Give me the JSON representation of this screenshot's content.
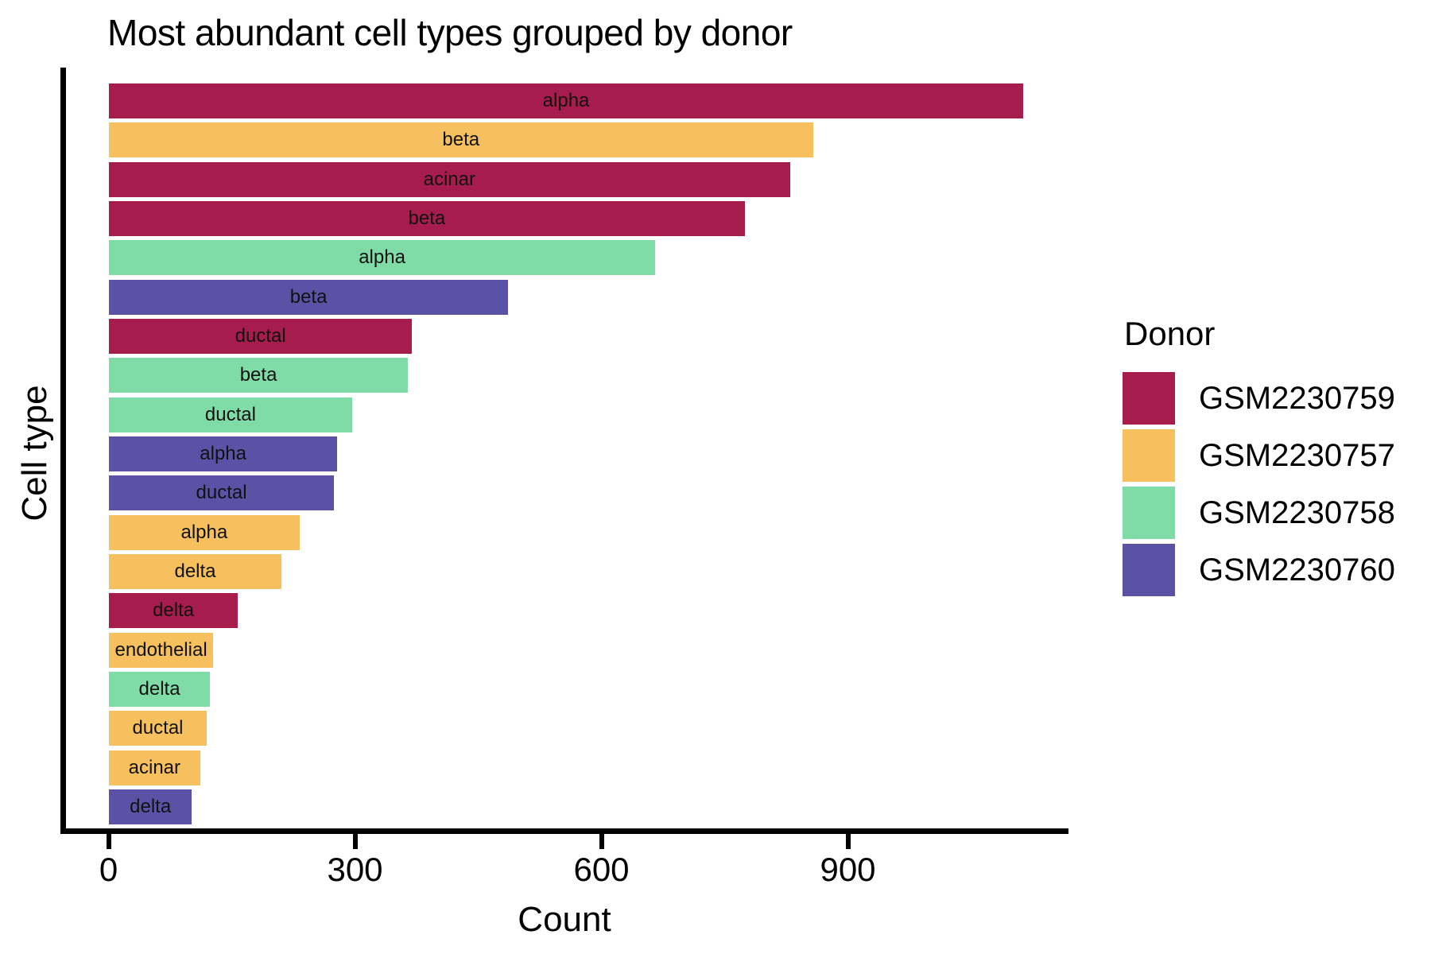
{
  "title": "Most abundant cell types grouped by donor",
  "xlabel": "Count",
  "ylabel": "Cell type",
  "legend": {
    "title": "Donor",
    "entries": [
      {
        "label": "GSM2230759",
        "color": "#A61D4D"
      },
      {
        "label": "GSM2230757",
        "color": "#F7C05E"
      },
      {
        "label": "GSM2230758",
        "color": "#80DCA7"
      },
      {
        "label": "GSM2230760",
        "color": "#5B52A5"
      }
    ]
  },
  "chart_data": {
    "type": "bar",
    "orientation": "horizontal",
    "title": "Most abundant cell types grouped by donor",
    "xlabel": "Count",
    "ylabel": "Cell type",
    "xlim": [
      0,
      1168
    ],
    "xticks": [
      0,
      300,
      600,
      900
    ],
    "grid": false,
    "legend_position": "right",
    "series_key": "Donor",
    "bars": [
      {
        "cell_type": "alpha",
        "donor": "GSM2230759",
        "value": 1113
      },
      {
        "cell_type": "beta",
        "donor": "GSM2230757",
        "value": 857
      },
      {
        "cell_type": "acinar",
        "donor": "GSM2230759",
        "value": 829
      },
      {
        "cell_type": "beta",
        "donor": "GSM2230759",
        "value": 774
      },
      {
        "cell_type": "alpha",
        "donor": "GSM2230758",
        "value": 665
      },
      {
        "cell_type": "beta",
        "donor": "GSM2230760",
        "value": 486
      },
      {
        "cell_type": "ductal",
        "donor": "GSM2230759",
        "value": 369
      },
      {
        "cell_type": "beta",
        "donor": "GSM2230758",
        "value": 364
      },
      {
        "cell_type": "ductal",
        "donor": "GSM2230758",
        "value": 296
      },
      {
        "cell_type": "alpha",
        "donor": "GSM2230760",
        "value": 278
      },
      {
        "cell_type": "ductal",
        "donor": "GSM2230760",
        "value": 274
      },
      {
        "cell_type": "alpha",
        "donor": "GSM2230757",
        "value": 232
      },
      {
        "cell_type": "delta",
        "donor": "GSM2230757",
        "value": 210
      },
      {
        "cell_type": "delta",
        "donor": "GSM2230759",
        "value": 157
      },
      {
        "cell_type": "endothelial",
        "donor": "GSM2230757",
        "value": 127
      },
      {
        "cell_type": "delta",
        "donor": "GSM2230758",
        "value": 123
      },
      {
        "cell_type": "ductal",
        "donor": "GSM2230757",
        "value": 119
      },
      {
        "cell_type": "acinar",
        "donor": "GSM2230757",
        "value": 111
      },
      {
        "cell_type": "delta",
        "donor": "GSM2230760",
        "value": 101
      }
    ]
  }
}
